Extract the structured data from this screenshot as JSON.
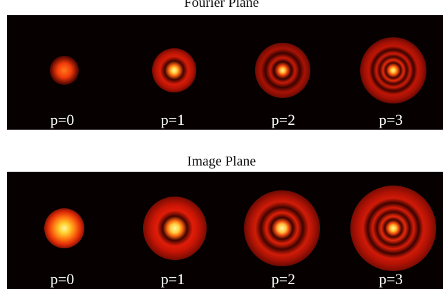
{
  "fourier": {
    "title": "Fourier Plane",
    "panels": [
      {
        "label": "p=0",
        "rings": 0
      },
      {
        "label": "p=1",
        "rings": 1
      },
      {
        "label": "p=2",
        "rings": 2
      },
      {
        "label": "p=3",
        "rings": 3
      }
    ]
  },
  "image": {
    "title": "Image Plane",
    "panels": [
      {
        "label": "p=0",
        "rings": 0
      },
      {
        "label": "p=1",
        "rings": 1
      },
      {
        "label": "p=2",
        "rings": 2
      },
      {
        "label": "p=3",
        "rings": 3
      }
    ]
  },
  "colors": {
    "background": "#060100",
    "core": "#fff59a",
    "ring": "#e01d08",
    "label": "#ffffff"
  }
}
